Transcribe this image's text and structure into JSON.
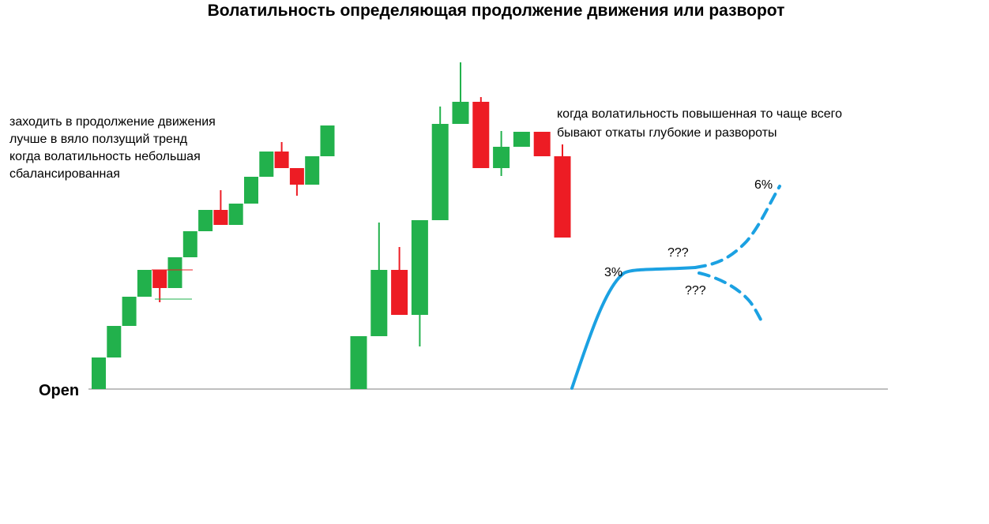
{
  "chart_data": {
    "type": "candlestick",
    "title": "Волатильность определяющая продолжение движения или разворот",
    "baseline_label": "Open",
    "colors": {
      "bull": "#22b14c",
      "bear": "#ed1c24",
      "projection": "#1ba1e2",
      "axis": "#7f7f7f"
    },
    "annotations": {
      "left": [
        "заходить в продолжение движения",
        "лучше в вяло ползущий тренд",
        "когда волатильность небольшая",
        "сбалансированная"
      ],
      "right": [
        "когда волатильность повышенная то чаще всего",
        "бывают откаты глубокие и развороты"
      ]
    },
    "projection_labels": {
      "first_move": "3%",
      "upper_target": "6%",
      "upper_unknown": "???",
      "lower_unknown": "???"
    },
    "low_volatility_series": [
      {
        "o": 0,
        "c": 40,
        "h": 40,
        "l": 0
      },
      {
        "o": 40,
        "c": 80,
        "h": 80,
        "l": 40
      },
      {
        "o": 80,
        "c": 117,
        "h": 117,
        "l": 80
      },
      {
        "o": 117,
        "c": 151,
        "h": 151,
        "l": 117
      },
      {
        "o": 151,
        "c": 128,
        "h": 151,
        "l": 110
      },
      {
        "o": 128,
        "c": 167,
        "h": 167,
        "l": 128
      },
      {
        "o": 167,
        "c": 200,
        "h": 200,
        "l": 167
      },
      {
        "o": 200,
        "c": 227,
        "h": 227,
        "l": 200
      },
      {
        "o": 227,
        "c": 208,
        "h": 252,
        "l": 208
      },
      {
        "o": 208,
        "c": 235,
        "h": 235,
        "l": 208
      },
      {
        "o": 235,
        "c": 269,
        "h": 269,
        "l": 235
      },
      {
        "o": 269,
        "c": 301,
        "h": 301,
        "l": 269
      },
      {
        "o": 301,
        "c": 280,
        "h": 313,
        "l": 280
      },
      {
        "o": 280,
        "c": 259,
        "h": 280,
        "l": 245
      },
      {
        "o": 259,
        "c": 295,
        "h": 295,
        "l": 259
      },
      {
        "o": 295,
        "c": 334,
        "h": 334,
        "l": 295
      }
    ],
    "high_volatility_series": [
      {
        "o": 0,
        "c": 67,
        "h": 67,
        "l": 0
      },
      {
        "o": 67,
        "c": 151,
        "h": 211,
        "l": 67
      },
      {
        "o": 151,
        "c": 94,
        "h": 180,
        "l": 94
      },
      {
        "o": 94,
        "c": 214,
        "h": 214,
        "l": 54
      },
      {
        "o": 214,
        "c": 336,
        "h": 358,
        "l": 214
      },
      {
        "o": 336,
        "c": 364,
        "h": 414,
        "l": 336
      },
      {
        "o": 364,
        "c": 280,
        "h": 370,
        "l": 280
      },
      {
        "o": 280,
        "c": 307,
        "h": 327,
        "l": 270
      },
      {
        "o": 307,
        "c": 326,
        "h": 326,
        "l": 307
      },
      {
        "o": 326,
        "c": 295,
        "h": 326,
        "l": 295
      },
      {
        "o": 295,
        "c": 192,
        "h": 310,
        "l": 192
      }
    ]
  }
}
